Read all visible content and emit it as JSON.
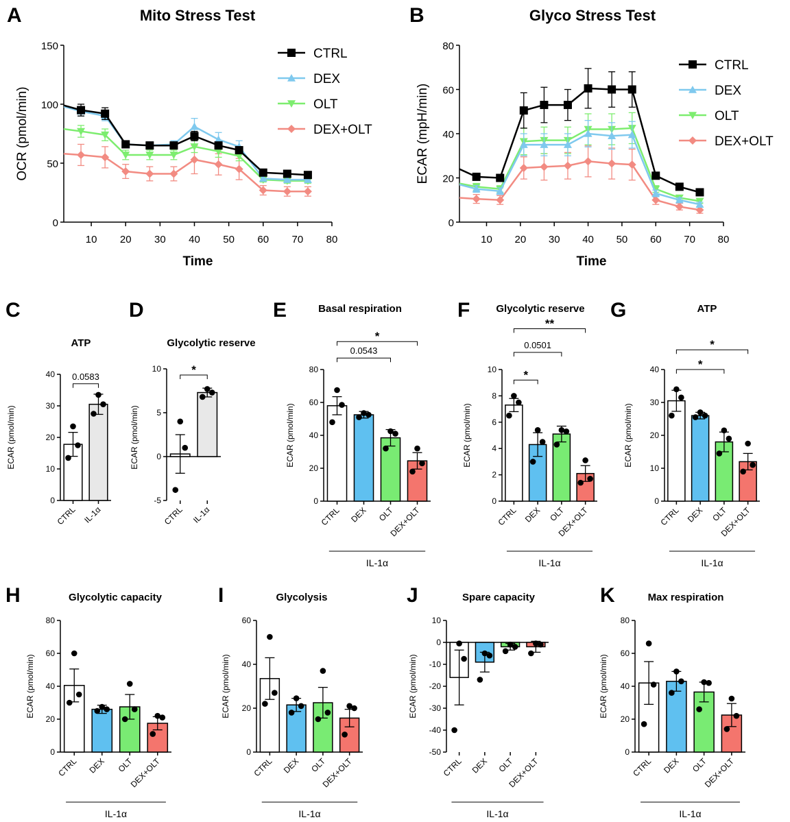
{
  "colors": {
    "CTRL": "#000000",
    "DEX": "#7fc9ee",
    "OLT": "#7ded6f",
    "DEX+OLT": "#f28b82",
    "bar_CTRL": "#ffffff",
    "bar_IL": "#e8e8e8",
    "bar_DEX": "#5fc0f0",
    "bar_OLT": "#79eb73",
    "bar_DEXOLT": "#f4756d"
  },
  "chart_data": [
    {
      "id": "A",
      "letter": "A",
      "type": "line",
      "title": "Mito Stress Test",
      "xlabel": "Time",
      "ylabel": "OCR (pmol/min)",
      "xlim": [
        2,
        80
      ],
      "ylim": [
        0,
        150
      ],
      "xticks": [
        "10",
        "20",
        "30",
        "40",
        "50",
        "60",
        "70",
        "80"
      ],
      "yticks": [
        "0",
        "50",
        "100",
        "150"
      ],
      "x": [
        7,
        14,
        20,
        27,
        34,
        40,
        47,
        53,
        60,
        67,
        73
      ],
      "legend": [
        "CTRL",
        "DEX",
        "OLT",
        "DEX+OLT"
      ],
      "series": [
        {
          "name": "CTRL",
          "marker": "square",
          "start": 99,
          "values": [
            95,
            92,
            66,
            65,
            65,
            73,
            65,
            61,
            42,
            41,
            40
          ],
          "errors": [
            5,
            5,
            3,
            3,
            3,
            4,
            3,
            3,
            2,
            2,
            2
          ]
        },
        {
          "name": "DEX",
          "marker": "triangle-up",
          "start": 98,
          "values": [
            94,
            90,
            66,
            65,
            66,
            81,
            70,
            64,
            37,
            36,
            36
          ],
          "errors": [
            4,
            4,
            3,
            3,
            3,
            7,
            6,
            5,
            2,
            2,
            2
          ]
        },
        {
          "name": "OLT",
          "marker": "triangle-down",
          "start": 79,
          "values": [
            77,
            74,
            57,
            57,
            57,
            64,
            60,
            56,
            36,
            35,
            35
          ],
          "errors": [
            5,
            5,
            4,
            4,
            4,
            5,
            5,
            4,
            2,
            2,
            2
          ]
        },
        {
          "name": "DEX+OLT",
          "marker": "diamond",
          "start": 58,
          "values": [
            57,
            55,
            43,
            41,
            41,
            53,
            49,
            45,
            27,
            26,
            26
          ],
          "errors": [
            9,
            9,
            6,
            6,
            6,
            12,
            9,
            9,
            4,
            4,
            4
          ]
        }
      ]
    },
    {
      "id": "B",
      "letter": "B",
      "type": "line",
      "title": "Glyco Stress Test",
      "xlabel": "Time",
      "ylabel": "ECAR (mpH/min)",
      "xlim": [
        2,
        80
      ],
      "ylim": [
        0,
        80
      ],
      "xticks": [
        "10",
        "20",
        "30",
        "40",
        "50",
        "60",
        "70",
        "80"
      ],
      "yticks": [
        "0",
        "20",
        "40",
        "60",
        "80"
      ],
      "x": [
        7,
        14,
        21,
        27,
        34,
        40,
        47,
        53,
        60,
        67,
        73
      ],
      "legend": [
        "CTRL",
        "DEX",
        "OLT",
        "DEX+OLT"
      ],
      "series": [
        {
          "name": "CTRL",
          "marker": "square",
          "start": 24,
          "values": [
            20.5,
            20,
            50.5,
            53,
            53,
            60.5,
            60,
            60,
            21,
            16,
            13.5
          ],
          "errors": [
            1.5,
            1.5,
            8,
            8,
            7,
            9,
            8,
            8,
            1.5,
            1,
            1
          ]
        },
        {
          "name": "DEX",
          "marker": "triangle-up",
          "start": 17,
          "values": [
            15,
            14,
            35,
            35,
            35,
            40,
            39,
            39.5,
            13,
            10,
            8
          ],
          "errors": [
            1.5,
            1.5,
            5,
            5,
            5,
            6,
            6,
            6,
            1.5,
            1,
            1
          ]
        },
        {
          "name": "OLT",
          "marker": "triangle-down",
          "start": 17.5,
          "values": [
            16,
            15,
            36.5,
            37,
            37,
            42,
            42,
            42.5,
            15,
            11,
            9.5
          ],
          "errors": [
            1.5,
            1.5,
            6,
            6,
            6,
            7,
            7,
            7,
            1.5,
            1,
            1
          ]
        },
        {
          "name": "DEX+OLT",
          "marker": "diamond",
          "start": 11,
          "values": [
            10.5,
            10,
            24.5,
            25,
            25.5,
            27.5,
            26.5,
            26,
            10,
            7,
            5.5
          ],
          "errors": [
            2,
            2,
            5,
            6,
            6,
            7,
            7,
            7,
            2,
            1.5,
            1.5
          ]
        }
      ]
    },
    {
      "id": "C",
      "letter": "C",
      "type": "bar",
      "title": "ATP",
      "ylabel": "ECAR (pmol/min)",
      "ylim": [
        0,
        40
      ],
      "yticks": [
        "0",
        "10",
        "20",
        "30",
        "40"
      ],
      "categories": [
        "CTRL",
        "IL-1α"
      ],
      "fills": [
        "bar_CTRL",
        "bar_IL"
      ],
      "values": [
        17.8,
        30.5
      ],
      "errors": [
        3.8,
        3.2
      ],
      "points": [
        [
          13.5,
          17.5,
          23.5
        ],
        [
          27.5,
          30.5,
          33.5
        ]
      ],
      "group_label": "",
      "comparisons": [
        {
          "a": 0,
          "b": 1,
          "label": "0.0583",
          "y": 37
        }
      ]
    },
    {
      "id": "D",
      "letter": "D",
      "type": "bar",
      "title": "Glycolytic reserve",
      "ylabel": "ECAR (pmol/min)",
      "ylim": [
        -5,
        10
      ],
      "yticks": [
        "-5",
        "0",
        "5",
        "10"
      ],
      "categories": [
        "CTRL",
        "IL-1α"
      ],
      "fills": [
        "bar_CTRL",
        "bar_IL"
      ],
      "values": [
        0.3,
        7.3
      ],
      "errors": [
        2.2,
        0.5
      ],
      "points": [
        [
          -3.8,
          1.0,
          4.0
        ],
        [
          6.8,
          7.3,
          7.7
        ]
      ],
      "group_label": "",
      "comparisons": [
        {
          "a": 0,
          "b": 1,
          "label": "*",
          "y": 9.3
        }
      ]
    },
    {
      "id": "E",
      "letter": "E",
      "type": "bar",
      "title": "Basal respiration",
      "ylabel": "ECAR (pmol/min)",
      "ylim": [
        0,
        80
      ],
      "yticks": [
        "0",
        "20",
        "40",
        "60",
        "80"
      ],
      "categories": [
        "CTRL",
        "DEX",
        "OLT",
        "DEX+OLT"
      ],
      "fills": [
        "bar_CTRL",
        "bar_DEX",
        "bar_OLT",
        "bar_DEXOLT"
      ],
      "values": [
        58,
        52.5,
        38.5,
        24.5
      ],
      "errors": [
        5.5,
        2,
        5,
        5
      ],
      "points": [
        [
          48,
          58.5,
          67.5
        ],
        [
          51,
          52.5,
          53.5
        ],
        [
          32,
          41,
          42.5
        ],
        [
          18,
          23,
          32
        ]
      ],
      "group_label": "IL-1α",
      "comparisons": [
        {
          "a": 0,
          "b": 2,
          "label": "0.0543",
          "y": 87
        },
        {
          "a": 0,
          "b": 3,
          "label": "*",
          "y": 97
        }
      ]
    },
    {
      "id": "F",
      "letter": "F",
      "type": "bar",
      "title": "Glycolytic reserve",
      "ylabel": "ECAR (pmol/min)",
      "ylim": [
        0,
        10
      ],
      "yticks": [
        "0",
        "2",
        "4",
        "6",
        "8",
        "10"
      ],
      "categories": [
        "CTRL",
        "DEX",
        "OLT",
        "DEX+OLT"
      ],
      "fills": [
        "bar_CTRL",
        "bar_DEX",
        "bar_OLT",
        "bar_DEXOLT"
      ],
      "values": [
        7.3,
        4.3,
        5.1,
        2.1
      ],
      "errors": [
        0.5,
        0.9,
        0.6,
        0.6
      ],
      "points": [
        [
          6.5,
          7.5,
          8.0
        ],
        [
          3.0,
          4.5,
          5.4
        ],
        [
          4.3,
          5.3,
          5.4
        ],
        [
          1.4,
          1.7,
          3.1
        ]
      ],
      "group_label": "IL-1α",
      "comparisons": [
        {
          "a": 0,
          "b": 1,
          "label": "*",
          "y": 9.2
        },
        {
          "a": 0,
          "b": 2,
          "label": "0.0501",
          "y": 11.3
        },
        {
          "a": 0,
          "b": 3,
          "label": "**",
          "y": 13.1
        }
      ]
    },
    {
      "id": "G",
      "letter": "G",
      "type": "bar",
      "title": "ATP",
      "ylabel": "ECAR (pmol/min)",
      "ylim": [
        0,
        40
      ],
      "yticks": [
        "0",
        "10",
        "20",
        "30",
        "40"
      ],
      "categories": [
        "CTRL",
        "DEX",
        "OLT",
        "DEX+OLT"
      ],
      "fills": [
        "bar_CTRL",
        "bar_DEX",
        "bar_OLT",
        "bar_DEXOLT"
      ],
      "values": [
        30.5,
        26,
        18,
        12
      ],
      "errors": [
        3.2,
        1,
        3,
        2.5
      ],
      "points": [
        [
          26,
          31.5,
          34
        ],
        [
          25.5,
          26,
          27
        ],
        [
          14.5,
          19,
          21.5
        ],
        [
          9,
          11,
          17.5
        ]
      ],
      "group_label": "IL-1α",
      "comparisons": [
        {
          "a": 0,
          "b": 2,
          "label": "*",
          "y": 40
        },
        {
          "a": 0,
          "b": 3,
          "label": "*",
          "y": 46
        }
      ]
    },
    {
      "id": "H",
      "letter": "H",
      "type": "bar",
      "title": "Glycolytic capacity",
      "ylabel": "ECAR (pmol/min)",
      "ylim": [
        0,
        80
      ],
      "yticks": [
        "0",
        "20",
        "40",
        "60",
        "80"
      ],
      "categories": [
        "CTRL",
        "DEX",
        "OLT",
        "DEX+OLT"
      ],
      "fills": [
        "bar_CTRL",
        "bar_DEX",
        "bar_OLT",
        "bar_DEXOLT"
      ],
      "values": [
        40.5,
        26,
        27.5,
        17.5
      ],
      "errors": [
        10,
        2.5,
        7.5,
        4
      ],
      "points": [
        [
          30,
          35,
          60
        ],
        [
          25,
          26,
          27.5
        ],
        [
          20,
          26,
          41.5
        ],
        [
          11,
          21,
          22
        ]
      ],
      "group_label": "IL-1α",
      "comparisons": []
    },
    {
      "id": "I",
      "letter": "I",
      "type": "bar",
      "title": "Glycolysis",
      "ylabel": "ECAR (pmol/min)",
      "ylim": [
        0,
        60
      ],
      "yticks": [
        "0",
        "20",
        "40",
        "60"
      ],
      "categories": [
        "CTRL",
        "DEX",
        "OLT",
        "DEX+OLT"
      ],
      "fills": [
        "bar_CTRL",
        "bar_DEX",
        "bar_OLT",
        "bar_DEXOLT"
      ],
      "values": [
        33.5,
        21.5,
        22.5,
        15.5
      ],
      "errors": [
        9.5,
        3,
        7,
        4
      ],
      "points": [
        [
          22,
          27,
          52.5
        ],
        [
          18,
          21,
          24.5
        ],
        [
          15,
          18,
          37
        ],
        [
          8,
          20,
          21
        ]
      ],
      "group_label": "IL-1α",
      "comparisons": []
    },
    {
      "id": "J",
      "letter": "J",
      "type": "bar",
      "title": "Spare capacity",
      "ylabel": "ECAR (pmol/min)",
      "ylim": [
        -50,
        10
      ],
      "yticks": [
        "-50",
        "-40",
        "-30",
        "-20",
        "-10",
        "0",
        "10"
      ],
      "categories": [
        "CTRL",
        "DEX",
        "OLT",
        "DEX+OLT"
      ],
      "fills": [
        "bar_CTRL",
        "bar_DEX",
        "bar_OLT",
        "bar_DEXOLT"
      ],
      "values": [
        -16,
        -9,
        -2,
        -2
      ],
      "errors": [
        12.5,
        4.5,
        1.5,
        2.5
      ],
      "points": [
        [
          -40,
          -7.5,
          -0.5
        ],
        [
          -17,
          -6,
          -5
        ],
        [
          -4,
          -2,
          -1
        ],
        [
          -5,
          -1,
          -0.5
        ]
      ],
      "group_label": "IL-1α",
      "comparisons": []
    },
    {
      "id": "K",
      "letter": "K",
      "type": "bar",
      "title": "Max respiration",
      "ylabel": "ECAR (pmol/min)",
      "ylim": [
        0,
        80
      ],
      "yticks": [
        "0",
        "20",
        "40",
        "60",
        "80"
      ],
      "categories": [
        "CTRL",
        "DEX",
        "OLT",
        "DEX+OLT"
      ],
      "fills": [
        "bar_CTRL",
        "bar_DEX",
        "bar_OLT",
        "bar_DEXOLT"
      ],
      "values": [
        42,
        43,
        36.5,
        22.5
      ],
      "errors": [
        13,
        6,
        6,
        7
      ],
      "points": [
        [
          17,
          41,
          66
        ],
        [
          36,
          43,
          49
        ],
        [
          26,
          42,
          42.5
        ],
        [
          14,
          22,
          32.5
        ]
      ],
      "group_label": "IL-1α",
      "comparisons": []
    }
  ]
}
